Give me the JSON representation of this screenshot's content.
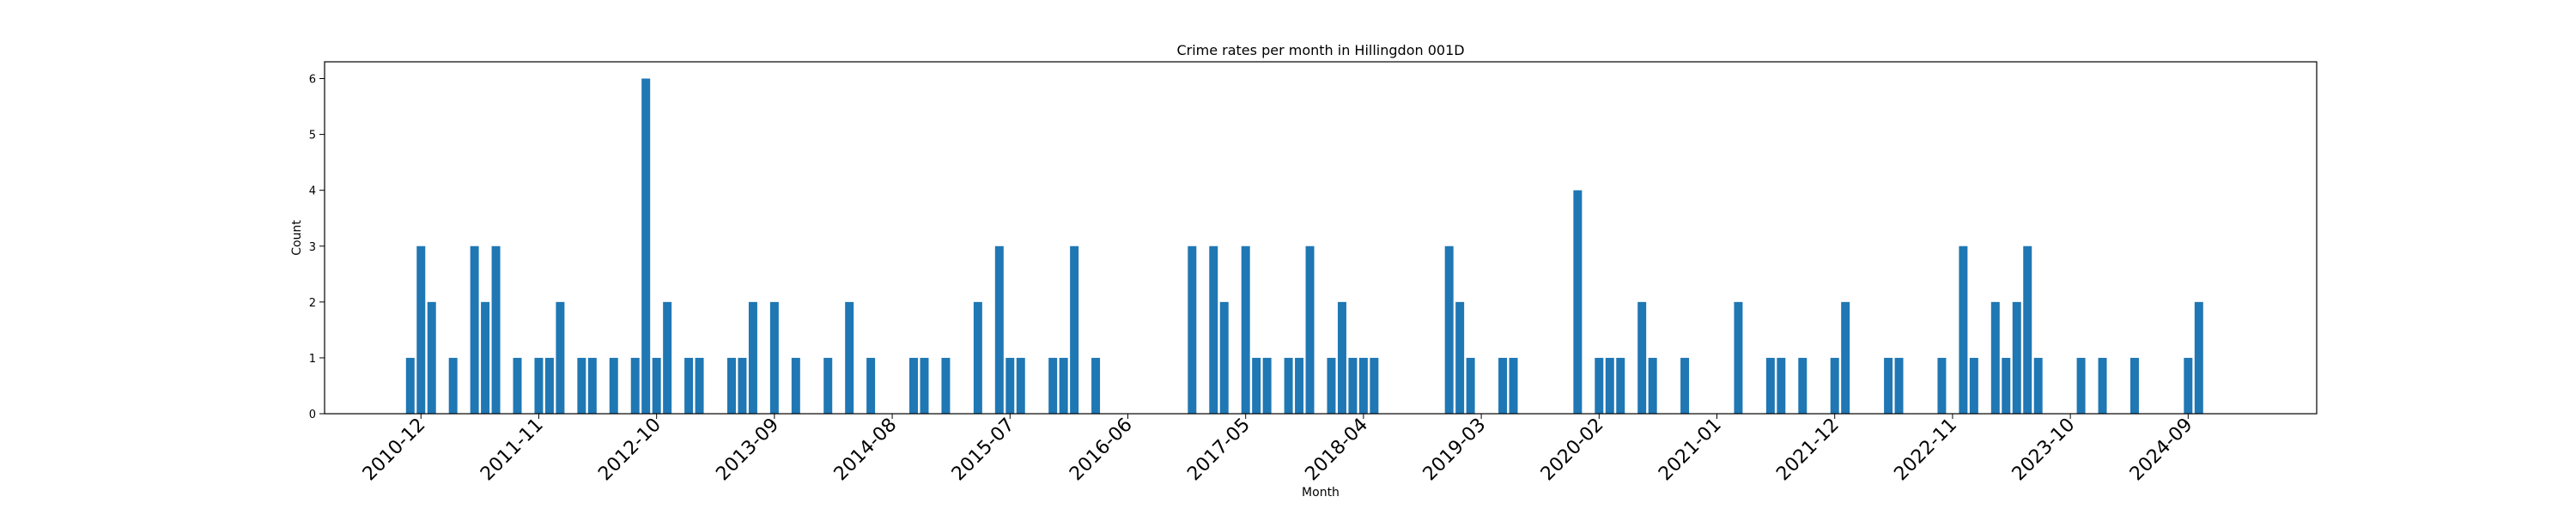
{
  "chart_data": {
    "type": "bar",
    "title": "Crime rates per month in Hillingdon 001D",
    "xlabel": "Month",
    "ylabel": "Count",
    "ylim": [
      0,
      6.3
    ],
    "yticks": [
      0,
      1,
      2,
      3,
      4,
      5,
      6
    ],
    "xlim": [
      "2010-03",
      "2025-09"
    ],
    "xticks": [
      "2010-12",
      "2011-11",
      "2012-10",
      "2013-09",
      "2014-08",
      "2015-07",
      "2016-06",
      "2017-05",
      "2018-04",
      "2019-03",
      "2020-02",
      "2021-01",
      "2021-12",
      "2022-11",
      "2023-10",
      "2024-09"
    ],
    "grid": false,
    "color": "#1f77b4",
    "series": [
      {
        "x": [
          "2010-11",
          "2010-12",
          "2011-01",
          "2011-03",
          "2011-05",
          "2011-06",
          "2011-07",
          "2011-09",
          "2011-11",
          "2011-12",
          "2012-01",
          "2012-03",
          "2012-04",
          "2012-06",
          "2012-08",
          "2012-09",
          "2012-10",
          "2012-11",
          "2013-01",
          "2013-02",
          "2013-05",
          "2013-06",
          "2013-07",
          "2013-09",
          "2013-11",
          "2014-02",
          "2014-04",
          "2014-06",
          "2014-10",
          "2014-11",
          "2015-01",
          "2015-04",
          "2015-06",
          "2015-07",
          "2015-08",
          "2015-11",
          "2015-12",
          "2016-01",
          "2016-03",
          "2016-12",
          "2017-02",
          "2017-03",
          "2017-05",
          "2017-06",
          "2017-07",
          "2017-09",
          "2017-10",
          "2017-11",
          "2018-01",
          "2018-02",
          "2018-03",
          "2018-04",
          "2018-05",
          "2018-12",
          "2019-01",
          "2019-02",
          "2019-05",
          "2019-06",
          "2019-12",
          "2020-02",
          "2020-03",
          "2020-04",
          "2020-06",
          "2020-07",
          "2020-10",
          "2021-03",
          "2021-06",
          "2021-07",
          "2021-09",
          "2021-12",
          "2022-01",
          "2022-05",
          "2022-06",
          "2022-10",
          "2022-12",
          "2023-01",
          "2023-03",
          "2023-04",
          "2023-05",
          "2023-06",
          "2023-07",
          "2023-11",
          "2024-01",
          "2024-04",
          "2024-09",
          "2024-10"
        ],
        "values": [
          1,
          3,
          2,
          1,
          3,
          2,
          3,
          1,
          1,
          1,
          2,
          1,
          1,
          1,
          1,
          6,
          1,
          2,
          1,
          1,
          1,
          1,
          2,
          2,
          1,
          1,
          2,
          1,
          1,
          1,
          1,
          2,
          3,
          1,
          1,
          1,
          1,
          3,
          1,
          3,
          3,
          2,
          3,
          1,
          1,
          1,
          1,
          3,
          1,
          2,
          1,
          1,
          1,
          3,
          2,
          1,
          1,
          1,
          4,
          1,
          1,
          1,
          2,
          1,
          1,
          2,
          1,
          1,
          1,
          1,
          2,
          1,
          1,
          1,
          3,
          1,
          2,
          1,
          2,
          3,
          1,
          1,
          1,
          1,
          1,
          2
        ]
      }
    ]
  }
}
